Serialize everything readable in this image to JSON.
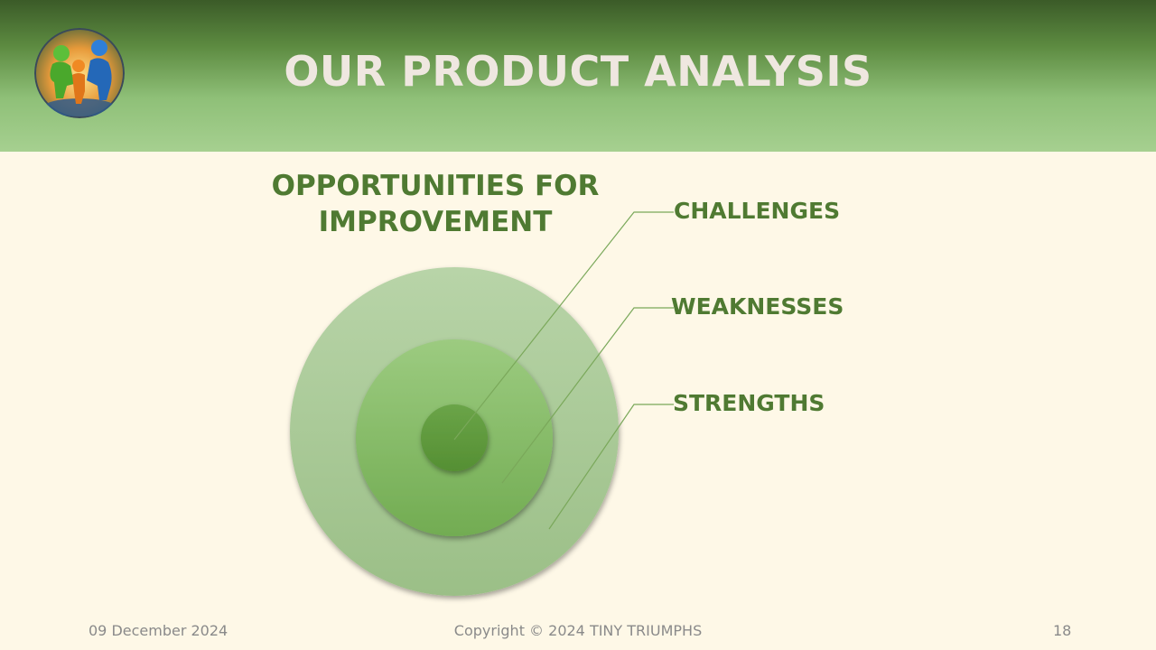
{
  "slide": {
    "title": "OUR PRODUCT ANALYSIS",
    "section_title": "OPPORTUNITIES FOR IMPROVEMENT",
    "logo_icon": "family-hands-logo",
    "rings": [
      {
        "label": "CHALLENGES"
      },
      {
        "label": "WEAKNESSES"
      },
      {
        "label": "STRENGTHS"
      }
    ]
  },
  "footer": {
    "date": "09 December 2024",
    "copyright": "Copyright © 2024 TINY TRIUMPHS",
    "page_number": "18"
  },
  "colors": {
    "header_dark": "#3b5b28",
    "header_light": "#a6d090",
    "background": "#fef8e7",
    "accent_green": "#4f7a32",
    "title_text": "#efe7e0",
    "footer_text": "#8a8a8a"
  }
}
